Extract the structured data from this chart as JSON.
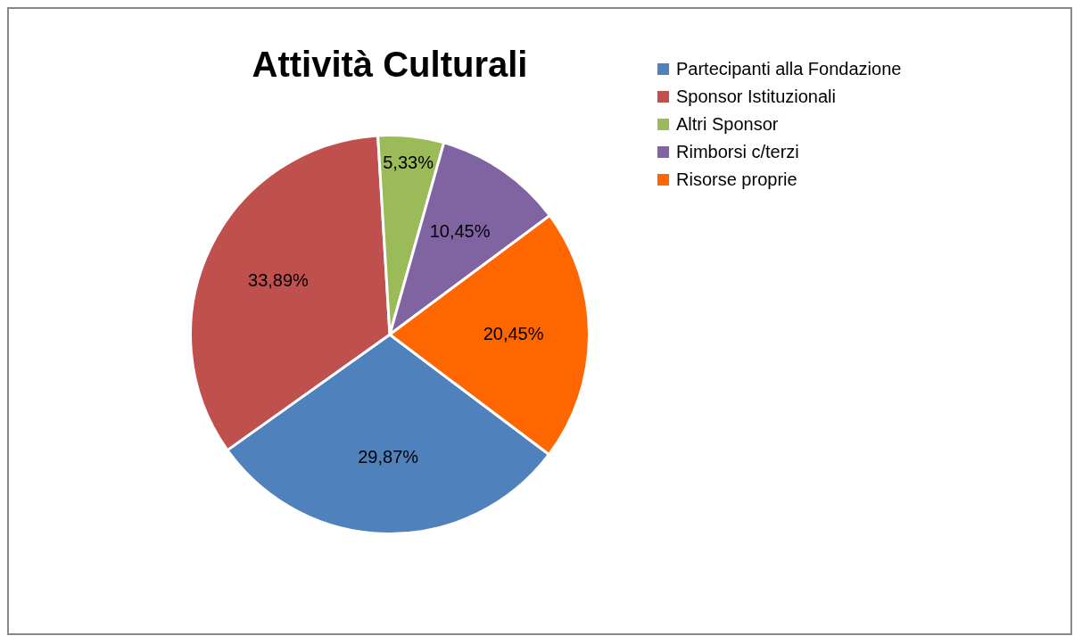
{
  "chart_data": {
    "type": "pie",
    "title": "Attività Culturali",
    "categories": [
      "Partecipanti alla Fondazione",
      "Sponsor Istituzionali",
      "Altri Sponsor",
      "Rimborsi c/terzi",
      "Risorse proprie"
    ],
    "values": [
      29.87,
      33.89,
      5.33,
      10.45,
      20.45
    ],
    "colors": [
      "#4f81bd",
      "#c0504d",
      "#9bbb59",
      "#8064a2",
      "#ff6600"
    ],
    "value_labels": [
      "29,87%",
      "33,89%",
      "5,33%",
      "10,45%",
      "20,45%"
    ],
    "legend": "top right"
  }
}
